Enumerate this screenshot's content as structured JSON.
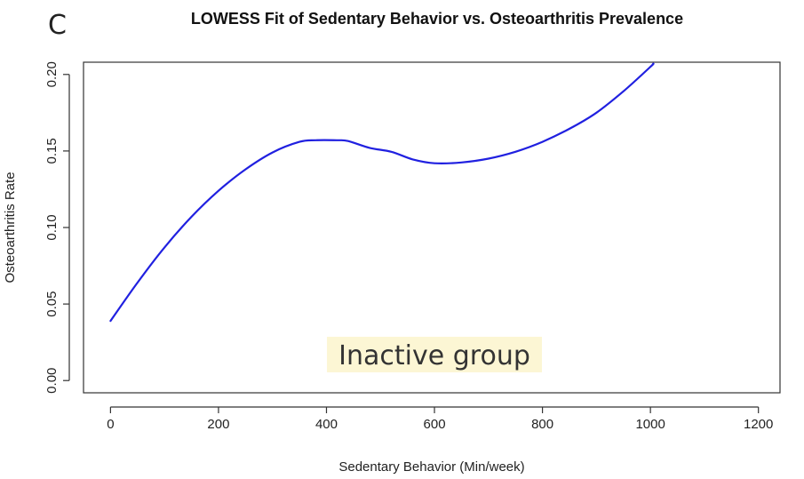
{
  "panel_label": "C",
  "chart_data": {
    "type": "line",
    "title": "LOWESS Fit of Sedentary Behavior vs. Osteoarthritis Prevalence",
    "xlabel": "Sedentary Behavior (Min/week)",
    "ylabel": "Osteoarthritis Rate",
    "xlim": [
      -50,
      1240
    ],
    "ylim": [
      -0.008,
      0.208
    ],
    "xticks": [
      0,
      200,
      400,
      600,
      800,
      1000,
      1200
    ],
    "yticks": [
      0.0,
      0.05,
      0.1,
      0.15,
      0.2
    ],
    "xtick_labels": [
      "0",
      "200",
      "400",
      "600",
      "800",
      "1000",
      "1200"
    ],
    "ytick_labels": [
      "0.00",
      "0.05",
      "0.10",
      "0.15",
      "0.20"
    ],
    "grid": false,
    "annotation": {
      "text": "Inactive group",
      "x": 600,
      "y": 0.017,
      "background": "#fcf6d4"
    },
    "series": [
      {
        "color": "#2020e0",
        "x": [
          0,
          50,
          100,
          150,
          200,
          250,
          300,
          350,
          380,
          420,
          440,
          480,
          520,
          560,
          600,
          650,
          700,
          750,
          800,
          850,
          900,
          950,
          1000,
          1005
        ],
        "y": [
          0.039,
          0.064,
          0.087,
          0.107,
          0.124,
          0.138,
          0.149,
          0.156,
          0.157,
          0.157,
          0.1565,
          0.152,
          0.1495,
          0.1445,
          0.142,
          0.1425,
          0.145,
          0.1495,
          0.156,
          0.1645,
          0.175,
          0.189,
          0.205,
          0.207
        ]
      }
    ]
  }
}
